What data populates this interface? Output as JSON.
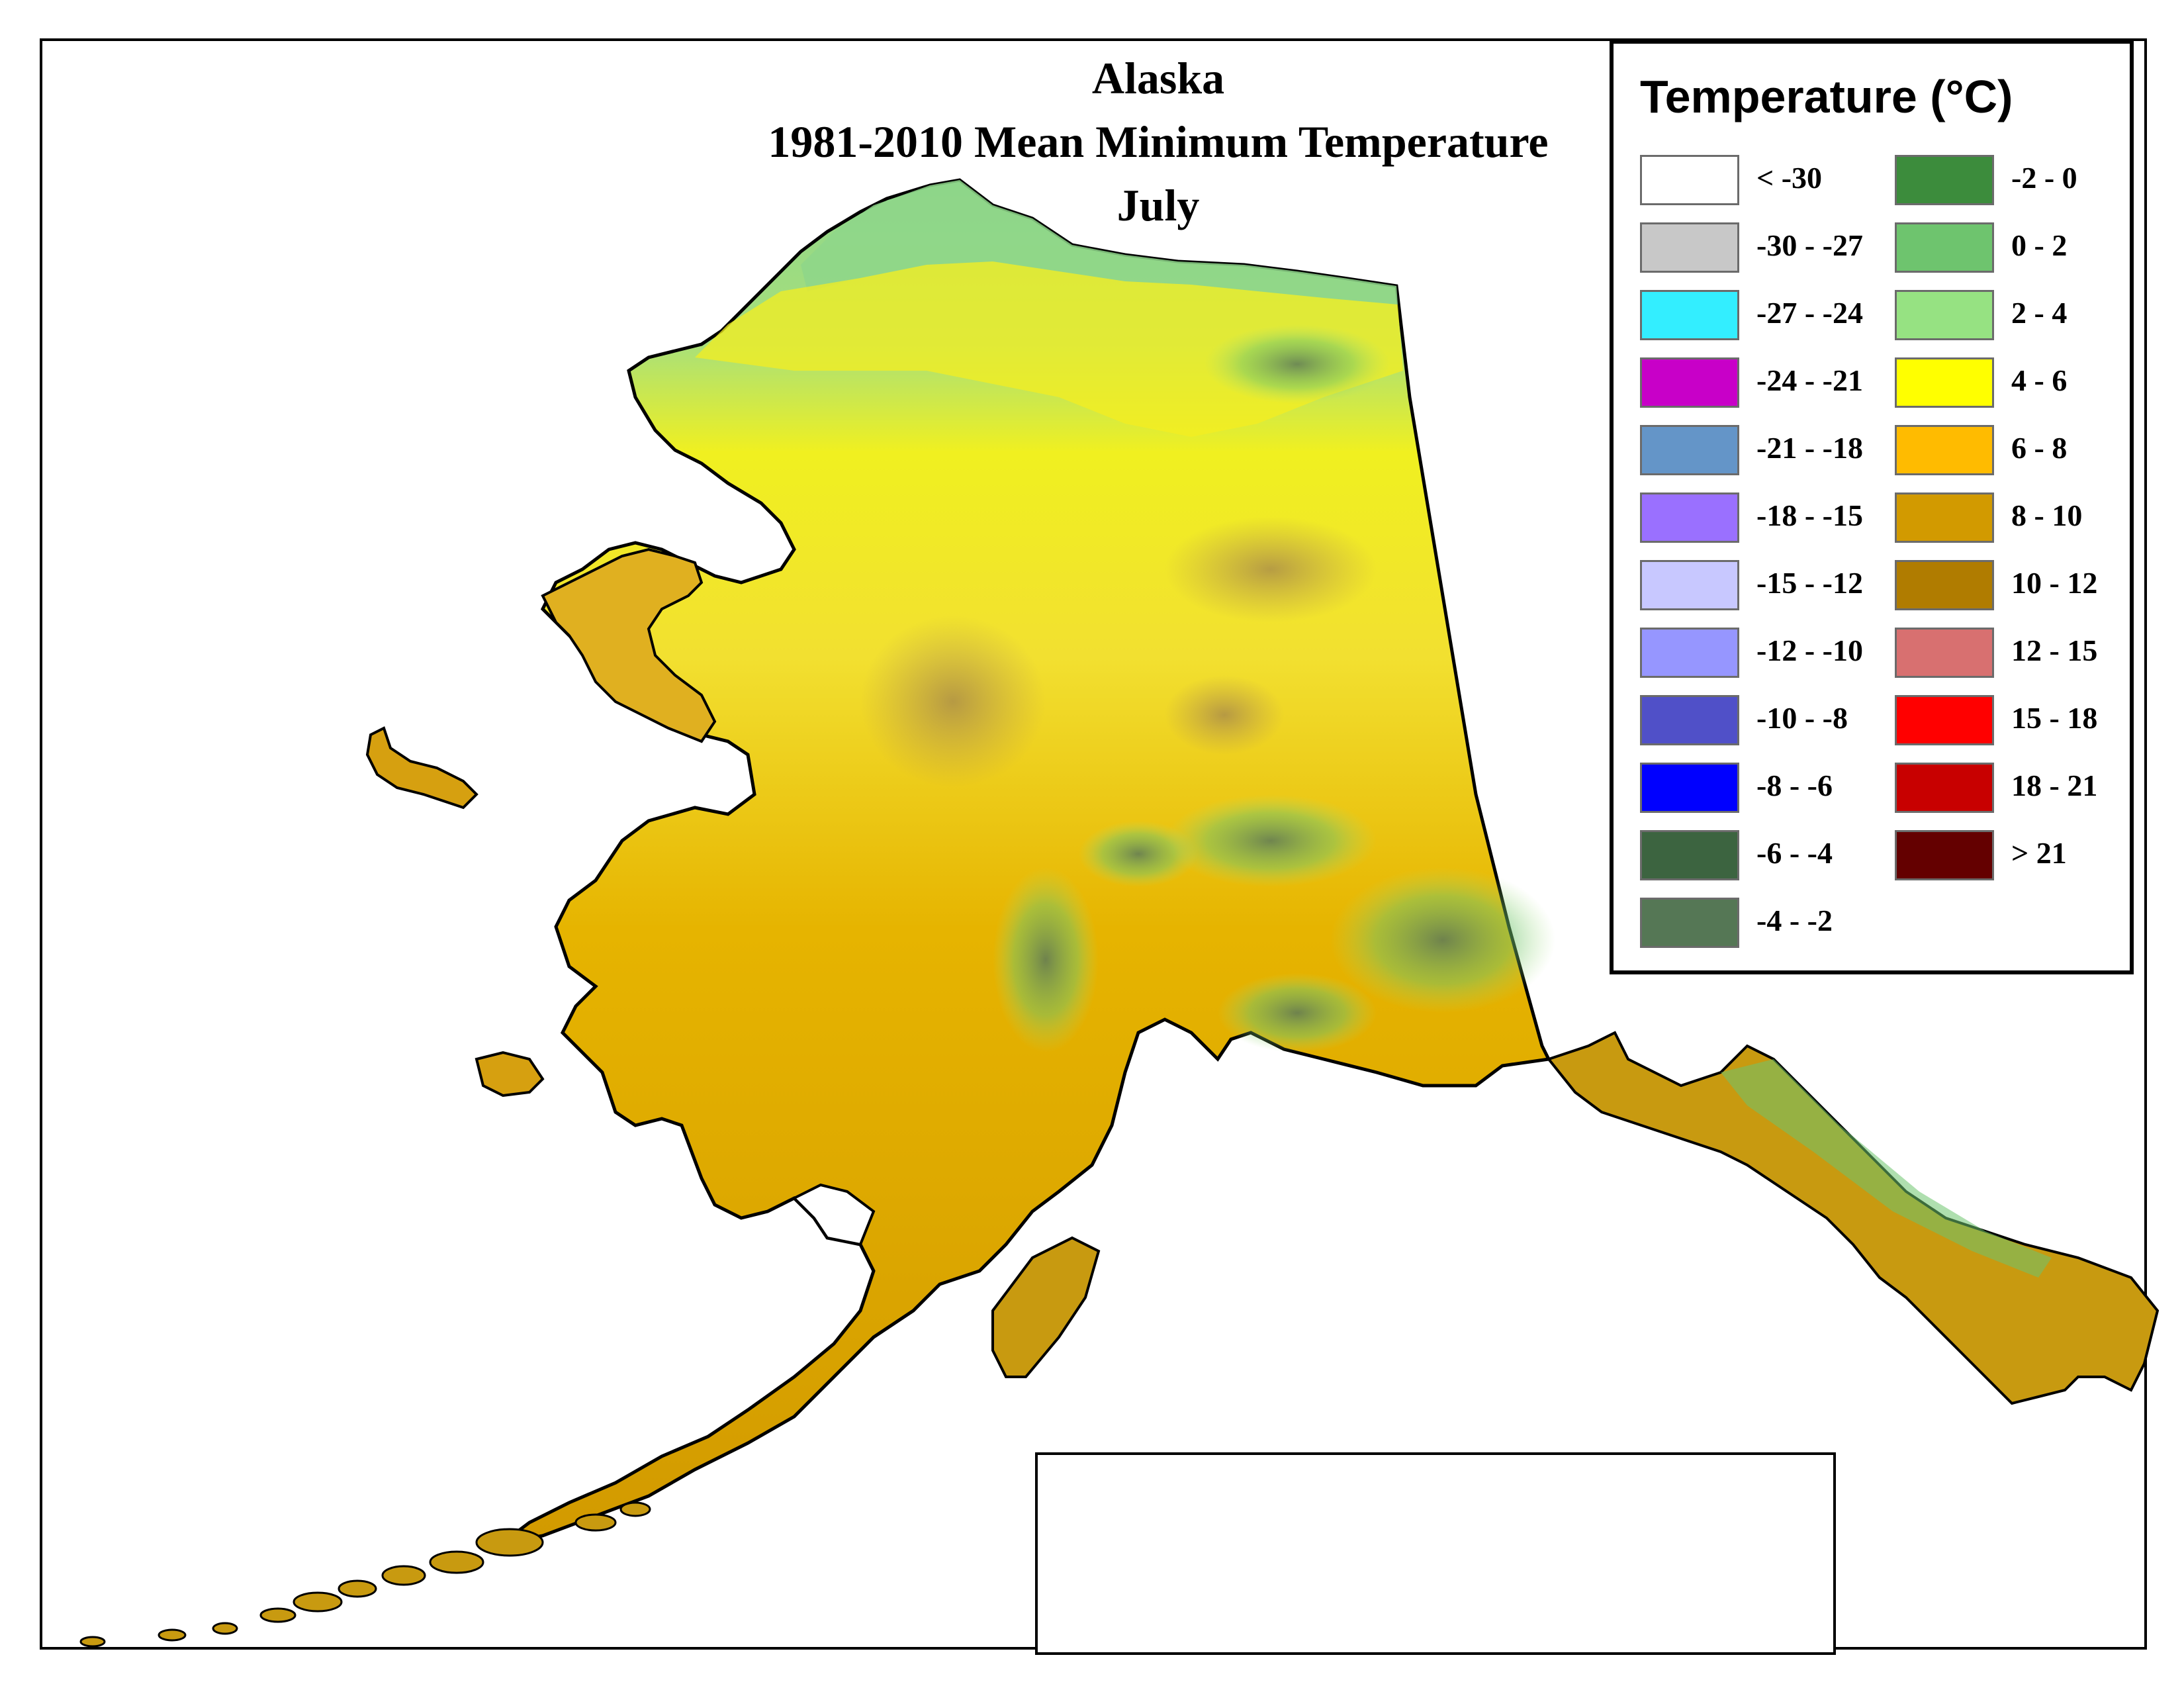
{
  "map": {
    "title_lines": [
      "Alaska",
      "1981-2010 Mean Minimum Temperature",
      "July"
    ]
  },
  "legend": {
    "title": "Temperature (°C)",
    "items": [
      {
        "label": "< -30",
        "color": "#ffffff"
      },
      {
        "label": "-30 - -27",
        "color": "#c8c8c8"
      },
      {
        "label": "-27 - -24",
        "color": "#33eeff"
      },
      {
        "label": "-24 - -21",
        "color": "#c800c8"
      },
      {
        "label": "-21 - -18",
        "color": "#6495c8"
      },
      {
        "label": "-18 - -15",
        "color": "#9a70ff"
      },
      {
        "label": "-15 - -12",
        "color": "#c8c8ff"
      },
      {
        "label": "-12 - -10",
        "color": "#9696ff"
      },
      {
        "label": "-10 - -8",
        "color": "#5050c8"
      },
      {
        "label": "-8 - -6",
        "color": "#0000ff"
      },
      {
        "label": "-6 - -4",
        "color": "#3c6440"
      },
      {
        "label": "-4 - -2",
        "color": "#557755"
      },
      {
        "label": "-2 - 0",
        "color": "#3c8c3c"
      },
      {
        "label": "0 - 2",
        "color": "#6ec46e"
      },
      {
        "label": "2 - 4",
        "color": "#96e282"
      },
      {
        "label": "4 - 6",
        "color": "#ffff00"
      },
      {
        "label": "6 - 8",
        "color": "#ffbb00"
      },
      {
        "label": "8 - 10",
        "color": "#d29a00"
      },
      {
        "label": "10 - 12",
        "color": "#b07c00"
      },
      {
        "label": "12 - 15",
        "color": "#d87070"
      },
      {
        "label": "15 - 18",
        "color": "#ff0000"
      },
      {
        "label": "18 - 21",
        "color": "#c80000"
      },
      {
        "label": "> 21",
        "color": "#640000"
      }
    ]
  }
}
